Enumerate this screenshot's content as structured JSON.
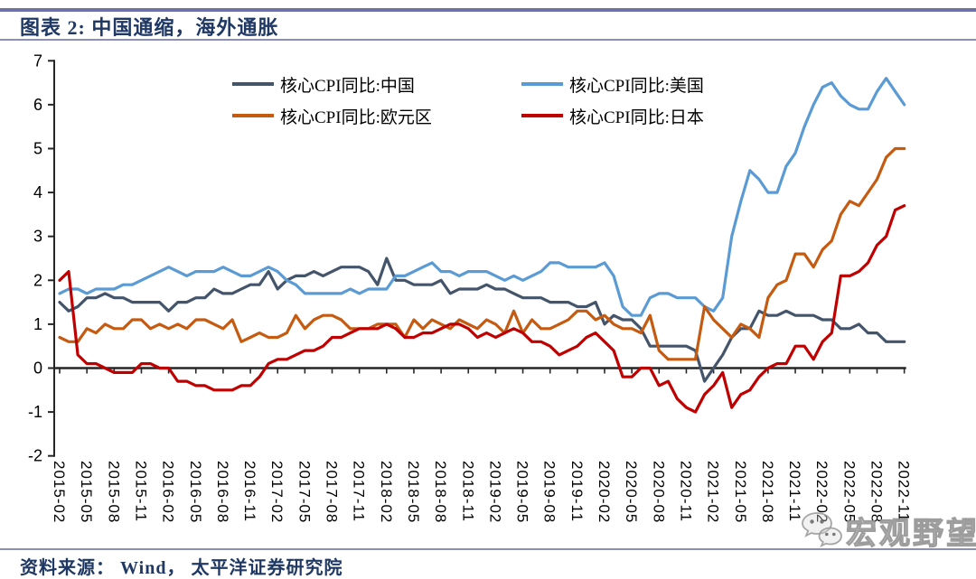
{
  "header": {
    "title": "图表 2:  中国通缩，海外通胀"
  },
  "footer": {
    "source": "资料来源： Wind， 太平洋证券研究院"
  },
  "watermark": {
    "icon": "wechat-icon",
    "label": "宏观野望"
  },
  "colors": {
    "title_text": "#1f3864",
    "rule_line": "#6e72a8",
    "axis": "#262626"
  },
  "chart_data": {
    "type": "line",
    "title": "图表 2: 中国通缩，海外通胀",
    "xlabel": "",
    "ylabel": "",
    "ylim": [
      -2,
      7
    ],
    "y_ticks": [
      -2,
      -1,
      0,
      1,
      2,
      3,
      4,
      5,
      6,
      7
    ],
    "grid": "none, zero baseline only",
    "legend_position": "top-center 2x2",
    "x_start": "2015-02",
    "x_end": "2022-11",
    "x_frequency": "monthly",
    "x_tick_labels": [
      "2015-02",
      "2015-05",
      "2015-08",
      "2015-11",
      "2016-02",
      "2016-05",
      "2016-08",
      "2016-11",
      "2017-02",
      "2017-05",
      "2017-08",
      "2017-11",
      "2018-02",
      "2018-05",
      "2018-08",
      "2018-11",
      "2019-02",
      "2019-05",
      "2019-08",
      "2019-11",
      "2020-02",
      "2020-05",
      "2020-08",
      "2020-11",
      "2021-02",
      "2021-05",
      "2021-08",
      "2021-11",
      "2022-02",
      "2022-05",
      "2022-08",
      "2022-11"
    ],
    "series": [
      {
        "name": "核心CPI同比:中国",
        "color": "#44546a",
        "values": [
          1.5,
          1.3,
          1.4,
          1.6,
          1.6,
          1.7,
          1.6,
          1.6,
          1.5,
          1.5,
          1.5,
          1.5,
          1.3,
          1.5,
          1.5,
          1.6,
          1.6,
          1.8,
          1.7,
          1.7,
          1.8,
          1.9,
          1.9,
          2.2,
          1.8,
          2.0,
          2.1,
          2.1,
          2.2,
          2.1,
          2.2,
          2.3,
          2.3,
          2.3,
          2.2,
          1.9,
          2.5,
          2.0,
          2.0,
          1.9,
          1.9,
          1.9,
          2.0,
          1.7,
          1.8,
          1.8,
          1.8,
          1.9,
          1.8,
          1.8,
          1.7,
          1.6,
          1.6,
          1.6,
          1.5,
          1.5,
          1.5,
          1.4,
          1.4,
          1.5,
          1.0,
          1.2,
          1.1,
          1.1,
          0.9,
          0.5,
          0.5,
          0.5,
          0.5,
          0.5,
          0.4,
          -0.3,
          0.0,
          0.3,
          0.7,
          0.9,
          0.9,
          1.3,
          1.2,
          1.2,
          1.3,
          1.2,
          1.2,
          1.2,
          1.1,
          1.1,
          0.9,
          0.9,
          1.0,
          0.8,
          0.8,
          0.6,
          0.6,
          0.6
        ]
      },
      {
        "name": "核心CPI同比:美国",
        "color": "#5b9bd5",
        "values": [
          1.7,
          1.8,
          1.8,
          1.7,
          1.8,
          1.8,
          1.8,
          1.9,
          1.9,
          2.0,
          2.1,
          2.2,
          2.3,
          2.2,
          2.1,
          2.2,
          2.2,
          2.2,
          2.3,
          2.2,
          2.1,
          2.1,
          2.2,
          2.3,
          2.2,
          2.0,
          1.9,
          1.7,
          1.7,
          1.7,
          1.7,
          1.7,
          1.8,
          1.7,
          1.8,
          1.8,
          1.8,
          2.1,
          2.1,
          2.2,
          2.3,
          2.4,
          2.2,
          2.2,
          2.1,
          2.2,
          2.2,
          2.2,
          2.1,
          2.0,
          2.1,
          2.0,
          2.1,
          2.2,
          2.4,
          2.4,
          2.3,
          2.3,
          2.3,
          2.3,
          2.4,
          2.1,
          1.4,
          1.2,
          1.2,
          1.6,
          1.7,
          1.7,
          1.6,
          1.6,
          1.6,
          1.4,
          1.3,
          1.6,
          3.0,
          3.8,
          4.5,
          4.3,
          4.0,
          4.0,
          4.6,
          4.9,
          5.5,
          6.0,
          6.4,
          6.5,
          6.2,
          6.0,
          5.9,
          5.9,
          6.3,
          6.6,
          6.3,
          6.0
        ]
      },
      {
        "name": "核心CPI同比:欧元区",
        "color": "#c55a11",
        "values": [
          0.7,
          0.6,
          0.6,
          0.9,
          0.8,
          1.0,
          0.9,
          0.9,
          1.1,
          1.1,
          0.9,
          1.0,
          0.9,
          1.0,
          0.9,
          1.1,
          1.1,
          1.0,
          0.9,
          1.1,
          0.6,
          0.7,
          0.8,
          0.7,
          0.7,
          0.8,
          1.2,
          0.9,
          1.1,
          1.2,
          1.2,
          1.1,
          0.9,
          0.9,
          0.9,
          1.0,
          1.0,
          1.0,
          0.7,
          1.1,
          0.9,
          1.1,
          1.0,
          0.9,
          1.1,
          1.0,
          0.9,
          1.1,
          1.0,
          0.8,
          1.3,
          0.8,
          1.1,
          0.9,
          0.9,
          1.0,
          1.1,
          1.3,
          1.3,
          1.1,
          1.2,
          1.0,
          0.9,
          0.9,
          0.8,
          1.2,
          0.4,
          0.2,
          0.2,
          0.2,
          0.2,
          1.4,
          1.1,
          0.9,
          0.7,
          1.0,
          0.9,
          0.7,
          1.6,
          1.9,
          2.0,
          2.6,
          2.6,
          2.3,
          2.7,
          2.9,
          3.5,
          3.8,
          3.7,
          4.0,
          4.3,
          4.8,
          5.0,
          5.0
        ]
      },
      {
        "name": "核心CPI同比:日本",
        "color": "#c00000",
        "values": [
          2.0,
          2.2,
          0.3,
          0.1,
          0.1,
          0.0,
          -0.1,
          -0.1,
          -0.1,
          0.1,
          0.1,
          0.0,
          0.0,
          -0.3,
          -0.3,
          -0.4,
          -0.4,
          -0.5,
          -0.5,
          -0.5,
          -0.4,
          -0.4,
          -0.2,
          0.1,
          0.2,
          0.2,
          0.3,
          0.4,
          0.4,
          0.5,
          0.7,
          0.7,
          0.8,
          0.9,
          0.9,
          0.9,
          1.0,
          0.9,
          0.7,
          0.7,
          0.8,
          0.8,
          0.9,
          1.0,
          1.0,
          0.9,
          0.7,
          0.8,
          0.7,
          0.8,
          0.9,
          0.8,
          0.6,
          0.6,
          0.5,
          0.3,
          0.4,
          0.5,
          0.7,
          0.8,
          0.6,
          0.4,
          -0.2,
          -0.2,
          0.0,
          0.0,
          -0.4,
          -0.3,
          -0.7,
          -0.9,
          -1.0,
          -0.6,
          -0.4,
          -0.1,
          -0.9,
          -0.6,
          -0.5,
          -0.2,
          0.0,
          0.1,
          0.1,
          0.5,
          0.5,
          0.2,
          0.6,
          0.8,
          2.1,
          2.1,
          2.2,
          2.4,
          2.8,
          3.0,
          3.6,
          3.7
        ]
      }
    ]
  }
}
